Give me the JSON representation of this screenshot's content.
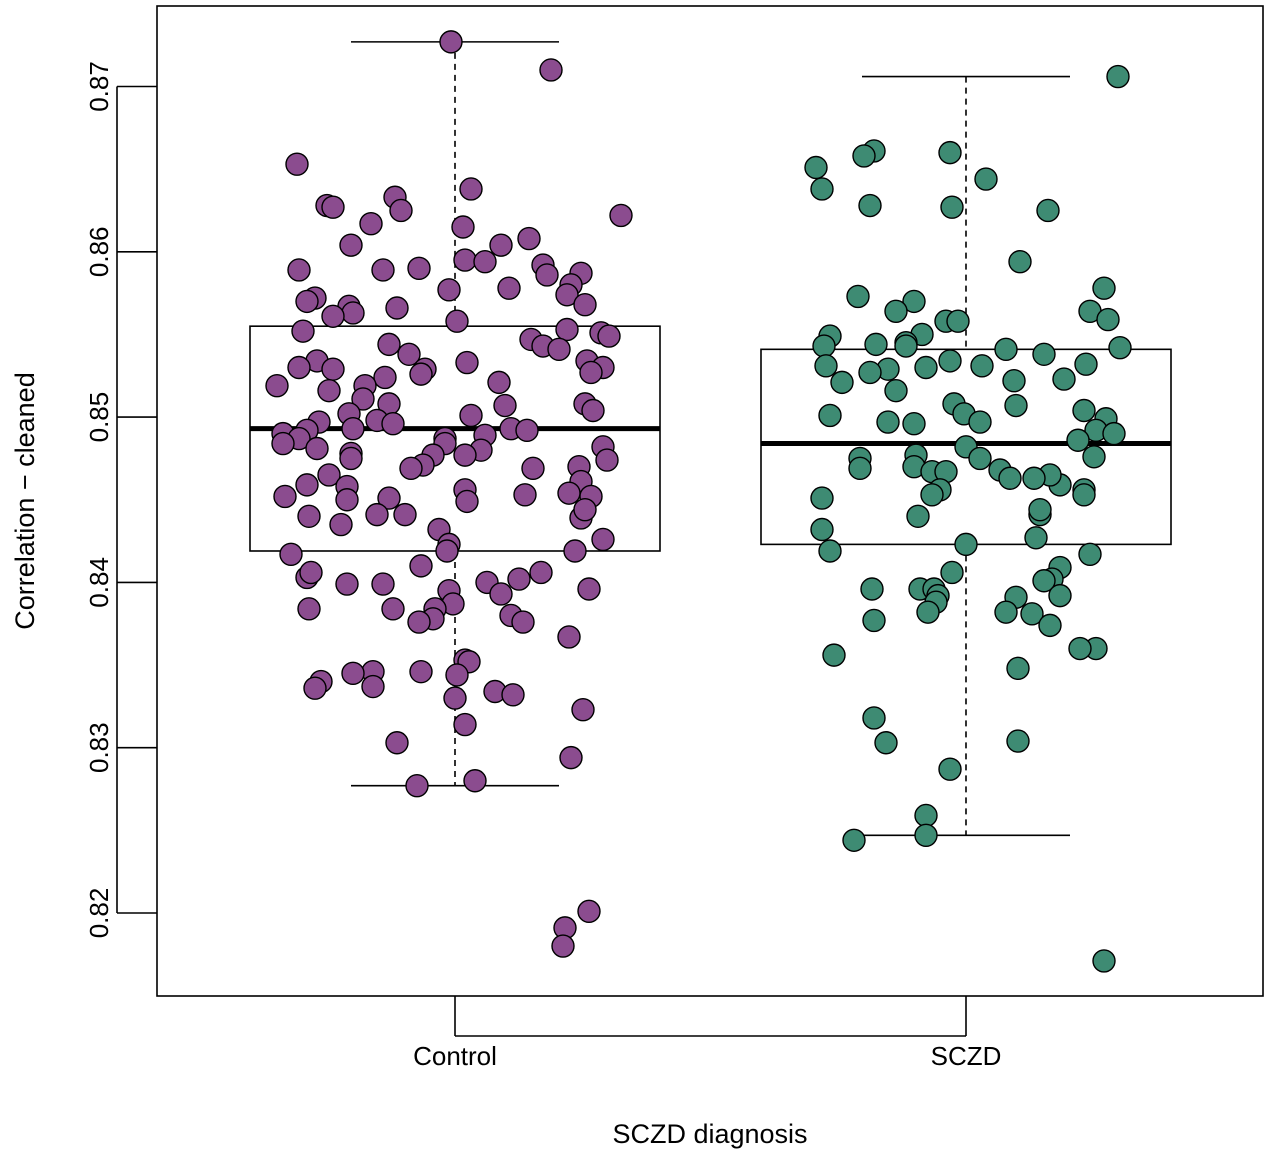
{
  "chart_data": {
    "type": "boxplot",
    "xlabel": "SCZD diagnosis",
    "ylabel": "Correlation − cleaned",
    "ylim": [
      0.815,
      0.8755
    ],
    "y_ticks": [
      "0.82",
      "0.83",
      "0.84",
      "0.85",
      "0.86",
      "0.87"
    ],
    "grid": false,
    "categories": [
      "Control",
      "SCZD"
    ],
    "series": [
      {
        "name": "Control",
        "color": "#8B4C8F",
        "box": {
          "whisker_low": 0.8277,
          "q1": 0.8419,
          "median": 0.8493,
          "q3": 0.8555,
          "whisker_high": 0.8727
        },
        "points": [
          [
            -0.004,
            0.8727
          ],
          [
            0.096,
            0.871
          ],
          [
            -0.158,
            0.8653
          ],
          [
            0.016,
            0.8638
          ],
          [
            -0.06,
            0.8633
          ],
          [
            -0.128,
            0.8628
          ],
          [
            0.166,
            0.8622
          ],
          [
            -0.122,
            0.8627
          ],
          [
            -0.054,
            0.8625
          ],
          [
            0.008,
            0.8615
          ],
          [
            -0.084,
            0.8617
          ],
          [
            0.074,
            0.8608
          ],
          [
            -0.104,
            0.8604
          ],
          [
            0.046,
            0.8604
          ],
          [
            0.01,
            0.8595
          ],
          [
            -0.156,
            0.8589
          ],
          [
            -0.072,
            0.8589
          ],
          [
            0.03,
            0.8594
          ],
          [
            0.088,
            0.8592
          ],
          [
            0.126,
            0.8587
          ],
          [
            0.092,
            0.8586
          ],
          [
            -0.036,
            0.859
          ],
          [
            0.054,
            0.8578
          ],
          [
            -0.006,
            0.8577
          ],
          [
            0.116,
            0.858
          ],
          [
            -0.14,
            0.8572
          ],
          [
            -0.148,
            0.857
          ],
          [
            0.112,
            0.8574
          ],
          [
            -0.106,
            0.8567
          ],
          [
            -0.058,
            0.8566
          ],
          [
            0.13,
            0.8568
          ],
          [
            -0.102,
            0.8563
          ],
          [
            -0.122,
            0.8561
          ],
          [
            0.002,
            0.8558
          ],
          [
            -0.152,
            0.8552
          ],
          [
            0.112,
            0.8553
          ],
          [
            0.146,
            0.8551
          ],
          [
            0.076,
            0.8547
          ],
          [
            0.154,
            0.8549
          ],
          [
            0.088,
            0.8543
          ],
          [
            -0.066,
            0.8544
          ],
          [
            0.104,
            0.8541
          ],
          [
            -0.138,
            0.8534
          ],
          [
            -0.046,
            0.8538
          ],
          [
            0.132,
            0.8534
          ],
          [
            0.012,
            0.8533
          ],
          [
            -0.122,
            0.8529
          ],
          [
            -0.03,
            0.8529
          ],
          [
            -0.156,
            0.853
          ],
          [
            0.148,
            0.853
          ],
          [
            0.136,
            0.8527
          ],
          [
            -0.07,
            0.8524
          ],
          [
            -0.034,
            0.8526
          ],
          [
            -0.09,
            0.8519
          ],
          [
            -0.126,
            0.8516
          ],
          [
            -0.092,
            0.8511
          ],
          [
            0.044,
            0.8521
          ],
          [
            -0.178,
            0.8519
          ],
          [
            0.05,
            0.8507
          ],
          [
            -0.066,
            0.8508
          ],
          [
            0.13,
            0.8508
          ],
          [
            -0.106,
            0.8502
          ],
          [
            0.016,
            0.8501
          ],
          [
            0.138,
            0.8504
          ],
          [
            -0.136,
            0.8497
          ],
          [
            -0.078,
            0.8498
          ],
          [
            -0.062,
            0.8496
          ],
          [
            -0.102,
            0.8493
          ],
          [
            0.056,
            0.8493
          ],
          [
            0.072,
            0.8492
          ],
          [
            -0.148,
            0.8492
          ],
          [
            -0.172,
            0.849
          ],
          [
            0.03,
            0.8489
          ],
          [
            -0.156,
            0.8487
          ],
          [
            -0.172,
            0.8484
          ],
          [
            -0.01,
            0.8487
          ],
          [
            -0.01,
            0.8484
          ],
          [
            0.148,
            0.8482
          ],
          [
            0.026,
            0.848
          ],
          [
            -0.138,
            0.8481
          ],
          [
            -0.104,
            0.8478
          ],
          [
            0.01,
            0.8477
          ],
          [
            -0.022,
            0.8477
          ],
          [
            0.152,
            0.8474
          ],
          [
            -0.104,
            0.8475
          ],
          [
            -0.032,
            0.8471
          ],
          [
            0.078,
            0.8469
          ],
          [
            -0.044,
            0.8469
          ],
          [
            0.124,
            0.847
          ],
          [
            -0.126,
            0.8465
          ],
          [
            0.126,
            0.8461
          ],
          [
            -0.108,
            0.8458
          ],
          [
            -0.148,
            0.8459
          ],
          [
            0.01,
            0.8456
          ],
          [
            0.114,
            0.8454
          ],
          [
            0.07,
            0.8453
          ],
          [
            -0.066,
            0.8451
          ],
          [
            -0.17,
            0.8452
          ],
          [
            -0.108,
            0.845
          ],
          [
            0.136,
            0.8452
          ],
          [
            0.012,
            0.8449
          ],
          [
            -0.078,
            0.8441
          ],
          [
            -0.146,
            0.844
          ],
          [
            -0.05,
            0.8441
          ],
          [
            0.126,
            0.8439
          ],
          [
            0.13,
            0.8444
          ],
          [
            -0.114,
            0.8435
          ],
          [
            -0.016,
            0.8432
          ],
          [
            0.148,
            0.8426
          ],
          [
            -0.006,
            0.8423
          ],
          [
            -0.008,
            0.8419
          ],
          [
            0.12,
            0.8419
          ],
          [
            -0.164,
            0.8417
          ],
          [
            -0.034,
            0.841
          ],
          [
            -0.148,
            0.8403
          ],
          [
            -0.144,
            0.8406
          ],
          [
            0.086,
            0.8406
          ],
          [
            0.064,
            0.8402
          ],
          [
            0.032,
            0.84
          ],
          [
            -0.072,
            0.8399
          ],
          [
            -0.108,
            0.8399
          ],
          [
            0.134,
            0.8396
          ],
          [
            -0.006,
            0.8395
          ],
          [
            0.046,
            0.8393
          ],
          [
            -0.002,
            0.8387
          ],
          [
            -0.146,
            0.8384
          ],
          [
            -0.062,
            0.8384
          ],
          [
            -0.02,
            0.8384
          ],
          [
            -0.022,
            0.8378
          ],
          [
            0.056,
            0.838
          ],
          [
            -0.036,
            0.8376
          ],
          [
            0.068,
            0.8376
          ],
          [
            0.114,
            0.8367
          ],
          [
            0.01,
            0.8353
          ],
          [
            0.014,
            0.8352
          ],
          [
            0.002,
            0.8344
          ],
          [
            -0.082,
            0.8346
          ],
          [
            -0.034,
            0.8346
          ],
          [
            -0.102,
            0.8345
          ],
          [
            -0.134,
            0.834
          ],
          [
            -0.082,
            0.8337
          ],
          [
            -0.14,
            0.8336
          ],
          [
            0.04,
            0.8334
          ],
          [
            0.058,
            0.8332
          ],
          [
            0.0,
            0.833
          ],
          [
            0.128,
            0.8323
          ],
          [
            0.01,
            0.8314
          ],
          [
            -0.058,
            0.8303
          ],
          [
            0.116,
            0.8294
          ],
          [
            0.02,
            0.828
          ],
          [
            -0.038,
            0.8277
          ],
          [
            0.134,
            0.8201
          ],
          [
            0.11,
            0.8191
          ],
          [
            0.108,
            0.818
          ]
        ]
      },
      {
        "name": "SCZD",
        "color": "#3E8B73",
        "box": {
          "whisker_low": 0.8247,
          "q1": 0.8423,
          "median": 0.8484,
          "q3": 0.8541,
          "whisker_high": 0.8706
        },
        "points": [
          [
            0.152,
            0.8706
          ],
          [
            -0.092,
            0.8661
          ],
          [
            -0.016,
            0.866
          ],
          [
            -0.15,
            0.8651
          ],
          [
            -0.102,
            0.8658
          ],
          [
            0.02,
            0.8644
          ],
          [
            -0.144,
            0.8638
          ],
          [
            0.082,
            0.8625
          ],
          [
            -0.096,
            0.8628
          ],
          [
            -0.014,
            0.8627
          ],
          [
            0.054,
            0.8594
          ],
          [
            0.138,
            0.8578
          ],
          [
            -0.108,
            0.8573
          ],
          [
            0.124,
            0.8564
          ],
          [
            -0.052,
            0.857
          ],
          [
            -0.07,
            0.8564
          ],
          [
            0.142,
            0.8559
          ],
          [
            -0.02,
            0.8558
          ],
          [
            -0.008,
            0.8558
          ],
          [
            -0.044,
            0.855
          ],
          [
            -0.136,
            0.8549
          ],
          [
            -0.06,
            0.8545
          ],
          [
            -0.09,
            0.8544
          ],
          [
            0.154,
            0.8542
          ],
          [
            -0.142,
            0.8543
          ],
          [
            -0.06,
            0.8543
          ],
          [
            0.04,
            0.8541
          ],
          [
            0.078,
            0.8538
          ],
          [
            -0.016,
            0.8534
          ],
          [
            -0.14,
            0.8531
          ],
          [
            0.12,
            0.8532
          ],
          [
            0.016,
            0.8531
          ],
          [
            -0.04,
            0.853
          ],
          [
            -0.078,
            0.8529
          ],
          [
            -0.096,
            0.8527
          ],
          [
            0.048,
            0.8522
          ],
          [
            -0.124,
            0.8521
          ],
          [
            0.098,
            0.8523
          ],
          [
            -0.07,
            0.8516
          ],
          [
            -0.012,
            0.8508
          ],
          [
            0.05,
            0.8507
          ],
          [
            0.118,
            0.8504
          ],
          [
            -0.136,
            0.8501
          ],
          [
            -0.002,
            0.8502
          ],
          [
            0.014,
            0.8497
          ],
          [
            -0.078,
            0.8497
          ],
          [
            0.14,
            0.8499
          ],
          [
            -0.052,
            0.8496
          ],
          [
            0.13,
            0.8492
          ],
          [
            0.148,
            0.849
          ],
          [
            0.112,
            0.8486
          ],
          [
            0.0,
            0.8482
          ],
          [
            -0.05,
            0.8477
          ],
          [
            -0.106,
            0.8475
          ],
          [
            0.014,
            0.8475
          ],
          [
            0.128,
            0.8476
          ],
          [
            -0.052,
            0.847
          ],
          [
            -0.106,
            0.8469
          ],
          [
            0.034,
            0.8468
          ],
          [
            0.044,
            0.8463
          ],
          [
            -0.034,
            0.8467
          ],
          [
            0.094,
            0.8459
          ],
          [
            0.084,
            0.8465
          ],
          [
            -0.02,
            0.8467
          ],
          [
            0.068,
            0.8463
          ],
          [
            0.118,
            0.8456
          ],
          [
            -0.026,
            0.8456
          ],
          [
            0.118,
            0.8453
          ],
          [
            -0.034,
            0.8453
          ],
          [
            0.074,
            0.8441
          ],
          [
            -0.144,
            0.8451
          ],
          [
            -0.048,
            0.844
          ],
          [
            0.074,
            0.8444
          ],
          [
            -0.144,
            0.8432
          ],
          [
            0.07,
            0.8427
          ],
          [
            0.0,
            0.8423
          ],
          [
            -0.136,
            0.8419
          ],
          [
            0.124,
            0.8417
          ],
          [
            0.094,
            0.8409
          ],
          [
            -0.014,
            0.8406
          ],
          [
            0.086,
            0.8402
          ],
          [
            0.078,
            0.8401
          ],
          [
            -0.046,
            0.8396
          ],
          [
            -0.094,
            0.8396
          ],
          [
            -0.032,
            0.8396
          ],
          [
            -0.028,
            0.8392
          ],
          [
            0.05,
            0.8391
          ],
          [
            0.094,
            0.8392
          ],
          [
            -0.03,
            0.8388
          ],
          [
            0.04,
            0.8382
          ],
          [
            0.066,
            0.8381
          ],
          [
            -0.038,
            0.8382
          ],
          [
            0.084,
            0.8374
          ],
          [
            -0.092,
            0.8377
          ],
          [
            0.13,
            0.836
          ],
          [
            0.114,
            0.836
          ],
          [
            -0.132,
            0.8356
          ],
          [
            0.052,
            0.8348
          ],
          [
            -0.092,
            0.8318
          ],
          [
            0.052,
            0.8304
          ],
          [
            -0.08,
            0.8303
          ],
          [
            -0.016,
            0.8287
          ],
          [
            -0.04,
            0.8259
          ],
          [
            -0.04,
            0.8247
          ],
          [
            -0.112,
            0.8244
          ],
          [
            0.138,
            0.8171
          ]
        ]
      }
    ]
  }
}
